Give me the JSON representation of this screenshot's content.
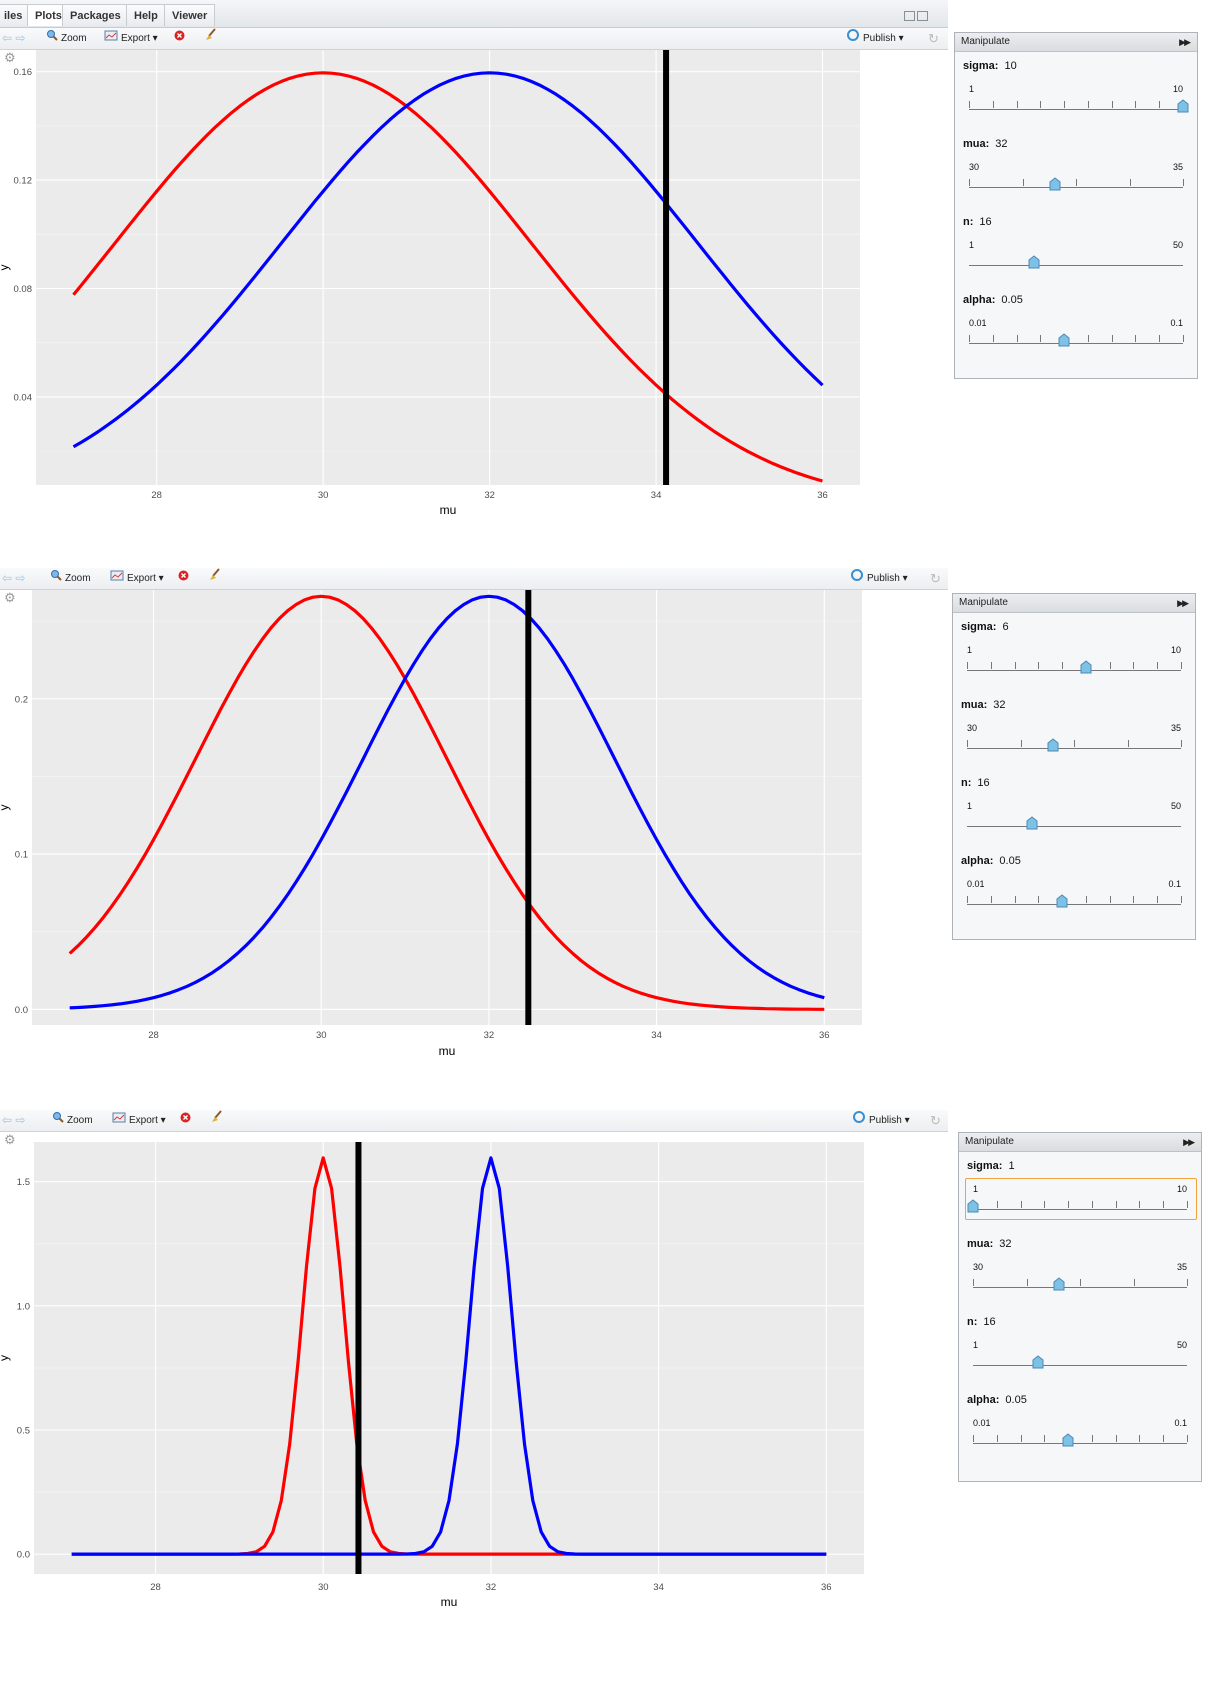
{
  "tabs": [
    "iles",
    "Plots",
    "Packages",
    "Help",
    "Viewer"
  ],
  "toolbar": {
    "zoom": "Zoom",
    "export": "Export ▾",
    "publish": "Publish",
    "publish_arrow": "▾"
  },
  "panels": [
    {
      "manipulate": {
        "title": "Manipulate",
        "controls": [
          {
            "name": "sigma:",
            "value": "10",
            "min": "1",
            "max": "10",
            "fraction": 1.0
          },
          {
            "name": "mua:",
            "value": "32",
            "min": "30",
            "max": "35",
            "fraction": 0.4
          },
          {
            "name": "n:",
            "value": "16",
            "min": "1",
            "max": "50",
            "fraction": 0.306
          },
          {
            "name": "alpha:",
            "value": "0.05",
            "min": "0.01",
            "max": "0.1",
            "fraction": 0.444
          }
        ]
      }
    },
    {
      "manipulate": {
        "title": "Manipulate",
        "controls": [
          {
            "name": "sigma:",
            "value": "6",
            "min": "1",
            "max": "10",
            "fraction": 0.556
          },
          {
            "name": "mua:",
            "value": "32",
            "min": "30",
            "max": "35",
            "fraction": 0.4
          },
          {
            "name": "n:",
            "value": "16",
            "min": "1",
            "max": "50",
            "fraction": 0.306
          },
          {
            "name": "alpha:",
            "value": "0.05",
            "min": "0.01",
            "max": "0.1",
            "fraction": 0.444
          }
        ]
      }
    },
    {
      "manipulate": {
        "title": "Manipulate",
        "controls": [
          {
            "name": "sigma:",
            "value": "1",
            "min": "1",
            "max": "10",
            "fraction": 0.0
          },
          {
            "name": "mua:",
            "value": "32",
            "min": "30",
            "max": "35",
            "fraction": 0.4
          },
          {
            "name": "n:",
            "value": "16",
            "min": "1",
            "max": "50",
            "fraction": 0.306
          },
          {
            "name": "alpha:",
            "value": "0.05",
            "min": "0.01",
            "max": "0.1",
            "fraction": 0.444
          }
        ]
      }
    }
  ],
  "chart_data": [
    {
      "type": "line",
      "xlabel": "mu",
      "ylabel": "y",
      "xlim": [
        27,
        36
      ],
      "ylim": [
        0.0075,
        0.168
      ],
      "xticks": [
        "28",
        "30",
        "32",
        "34",
        "36"
      ],
      "xtick_values": [
        28,
        30,
        32,
        34,
        36
      ],
      "yticks": [
        "0.04",
        "0.08",
        "0.12",
        "0.16"
      ],
      "ytick_values": [
        0.04,
        0.08,
        0.12,
        0.16
      ],
      "series": [
        {
          "color": "#ff0000",
          "mean": 30,
          "sd": 2.5
        },
        {
          "color": "#0000ff",
          "mean": 32,
          "sd": 2.5
        }
      ],
      "vline": {
        "x": 34.12,
        "color": "#000000"
      }
    },
    {
      "type": "line",
      "xlabel": "mu",
      "ylabel": "y",
      "xlim": [
        27,
        36
      ],
      "ylim": [
        -0.01,
        0.27
      ],
      "xticks": [
        "28",
        "30",
        "32",
        "34",
        "36"
      ],
      "xtick_values": [
        28,
        30,
        32,
        34,
        36
      ],
      "yticks": [
        "0.0",
        "0.1",
        "0.2"
      ],
      "ytick_values": [
        0.0,
        0.1,
        0.2
      ],
      "series": [
        {
          "color": "#ff0000",
          "mean": 30,
          "sd": 1.5
        },
        {
          "color": "#0000ff",
          "mean": 32,
          "sd": 1.5
        }
      ],
      "vline": {
        "x": 32.47,
        "color": "#000000"
      }
    },
    {
      "type": "line",
      "xlabel": "mu",
      "ylabel": "y",
      "xlim": [
        27,
        36
      ],
      "ylim": [
        -0.08,
        1.66
      ],
      "xticks": [
        "28",
        "30",
        "32",
        "34",
        "36"
      ],
      "xtick_values": [
        28,
        30,
        32,
        34,
        36
      ],
      "yticks": [
        "0.0",
        "0.5",
        "1.0",
        "1.5"
      ],
      "ytick_values": [
        0.0,
        0.5,
        1.0,
        1.5
      ],
      "series": [
        {
          "color": "#ff0000",
          "mean": 30,
          "sd": 0.25
        },
        {
          "color": "#0000ff",
          "mean": 32,
          "sd": 0.25
        }
      ],
      "vline": {
        "x": 30.42,
        "color": "#000000"
      }
    }
  ]
}
